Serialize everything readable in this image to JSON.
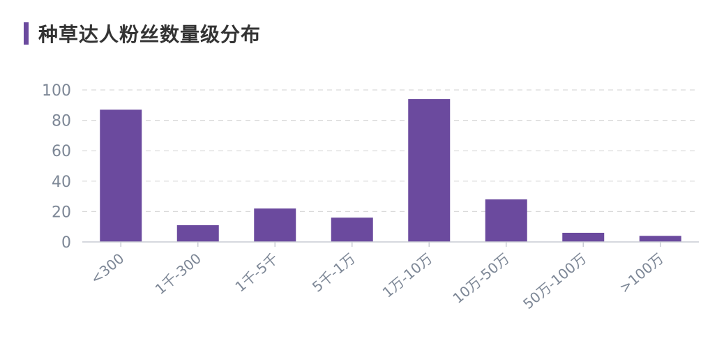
{
  "colors": {
    "accent": "#6b4a9e",
    "bar": "#6b4a9e",
    "title": "#333333",
    "tick_text": "#7d8796",
    "grid": "#d9d9d9",
    "axis": "#c9ccd4"
  },
  "chart_data": {
    "type": "bar",
    "title": "种草达人粉丝数量级分布",
    "xlabel": "",
    "ylabel": "",
    "ylim": [
      0,
      100
    ],
    "yticks": [
      0,
      20,
      40,
      60,
      80,
      100
    ],
    "grid": true,
    "categories": [
      "<300",
      "1千-300",
      "1千-5千",
      "5千-1万",
      "1万-10万",
      "10万-50万",
      "50万-100万",
      ">100万"
    ],
    "values": [
      87,
      11,
      22,
      16,
      94,
      28,
      6,
      4
    ]
  }
}
